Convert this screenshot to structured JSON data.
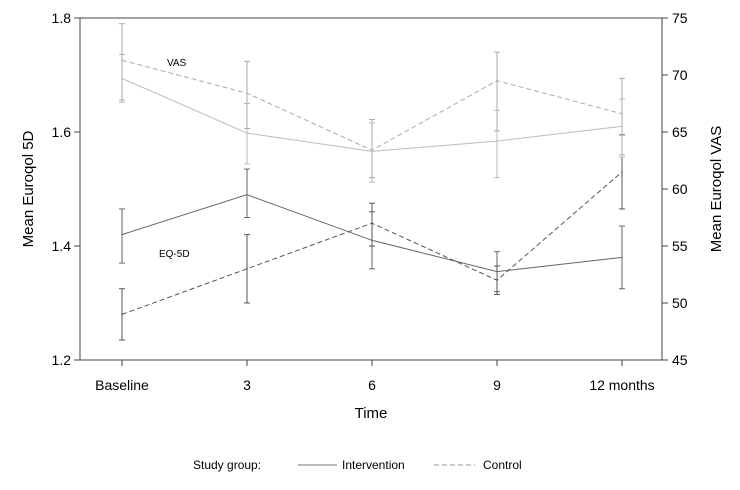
{
  "chart_data": {
    "type": "line",
    "xlabel": "Time",
    "categories": [
      "Baseline",
      "3",
      "6",
      "9",
      "12 months"
    ],
    "y_left": {
      "label": "Mean Euroqol 5D",
      "ylim": [
        1.2,
        1.8
      ],
      "ticks": [
        "1.2",
        "1.4",
        "1.6",
        "1.8"
      ]
    },
    "y_right": {
      "label": "Mean Euroqol VAS",
      "ylim": [
        45,
        75
      ],
      "ticks": [
        "45",
        "50",
        "55",
        "60",
        "65",
        "70",
        "75"
      ]
    },
    "annotations": [
      "VAS",
      "EQ-5D"
    ],
    "legend": {
      "title": "Study group:",
      "entries": [
        "Intervention",
        "Control"
      ],
      "placement": "bottom"
    },
    "grid": false,
    "series": [
      {
        "name": "Intervention",
        "measure": "EQ-5D",
        "axis": "left",
        "style": "solid",
        "color": "#666666",
        "values": [
          1.42,
          1.49,
          1.41,
          1.355,
          1.38
        ],
        "lower": [
          1.37,
          1.45,
          1.36,
          1.32,
          1.325
        ],
        "upper": [
          1.465,
          1.535,
          1.46,
          1.39,
          1.435
        ]
      },
      {
        "name": "Control",
        "measure": "EQ-5D",
        "axis": "left",
        "style": "dashed",
        "color": "#555555",
        "values": [
          1.28,
          1.36,
          1.44,
          1.34,
          1.53
        ],
        "lower": [
          1.235,
          1.3,
          1.4,
          1.315,
          1.465
        ],
        "upper": [
          1.325,
          1.42,
          1.475,
          1.365,
          1.595
        ]
      },
      {
        "name": "Intervention",
        "measure": "VAS",
        "axis": "right",
        "style": "solid",
        "color": "#bbbbbb",
        "values": [
          69.7,
          64.9,
          63.3,
          64.2,
          65.5
        ],
        "lower": [
          67.6,
          62.2,
          60.6,
          61.0,
          62.8
        ],
        "upper": [
          71.8,
          67.5,
          65.8,
          66.9,
          67.9
        ]
      },
      {
        "name": "Control",
        "measure": "VAS",
        "axis": "right",
        "style": "dashed",
        "color": "#aaaaaa",
        "values": [
          71.3,
          68.4,
          63.4,
          69.5,
          66.6
        ],
        "lower": [
          67.8,
          65.3,
          61.0,
          65.1,
          63.0
        ],
        "upper": [
          74.5,
          71.2,
          66.1,
          72.0,
          69.7
        ]
      }
    ]
  }
}
